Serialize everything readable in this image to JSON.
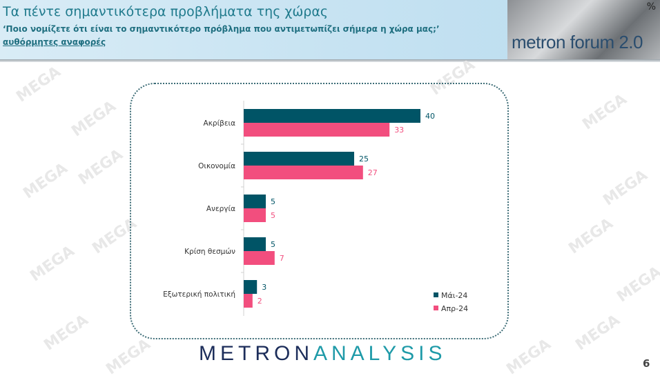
{
  "header": {
    "title": "Τα πέντε σημαντικότερα προβλήματα της χώρας",
    "subtitle": "‘Ποιο νομίζετε ότι είναι το σημαντικότερο πρόβλημα που αντιμετωπίζει σήμερα η χώρα μας;’",
    "note": "αυθόρμητες αναφορές",
    "forum_logo": "metron forum 2.0",
    "forum_mark": "%"
  },
  "watermark": "MEGA",
  "footer": {
    "logo_part1": "METRON",
    "logo_part2": "ANALYSIS",
    "page_number": "6"
  },
  "chart_data": {
    "type": "bar",
    "orientation": "horizontal",
    "categories": [
      "Ακρίβεια",
      "Οικονομία",
      "Ανεργία",
      "Κρίση θεσμών",
      "Εξωτερική πολιτική"
    ],
    "series": [
      {
        "name": "Μάι-24",
        "color": "#005466",
        "values": [
          40,
          25,
          5,
          5,
          3
        ]
      },
      {
        "name": "Απρ-24",
        "color": "#f24e7e",
        "values": [
          33,
          27,
          5,
          7,
          2
        ]
      }
    ],
    "data_labels": true,
    "legend": "bottom-right",
    "xlim": [
      0,
      40
    ],
    "grid": false
  }
}
